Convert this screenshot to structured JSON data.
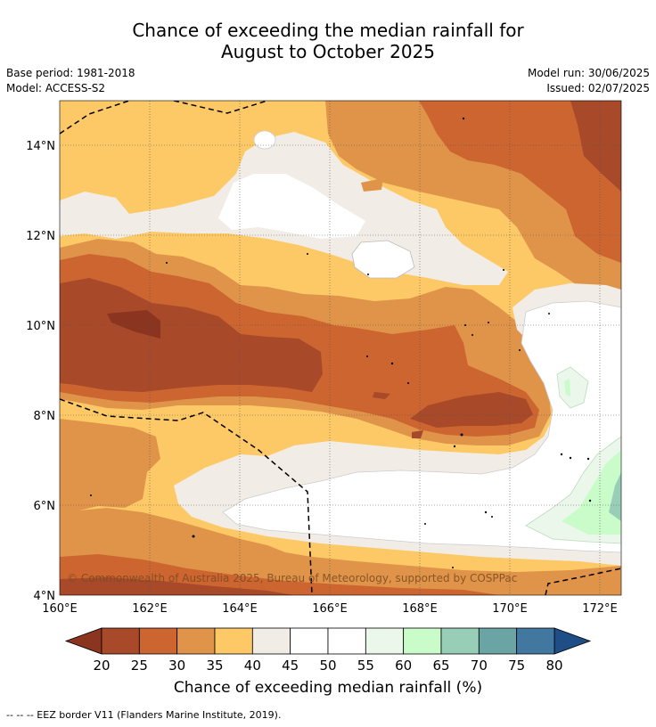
{
  "title_line1": "Chance of exceeding the median rainfall for",
  "title_line2": "August to October 2025",
  "base_period": "Base period: 1981-2018",
  "model": "Model: ACCESS-S2",
  "model_run": "Model run: 30/06/2025",
  "issued": "Issued: 02/07/2025",
  "map": {
    "lon_ticks": [
      "160°E",
      "162°E",
      "164°E",
      "166°E",
      "168°E",
      "170°E",
      "172°E"
    ],
    "lat_ticks": [
      "14°N",
      "12°N",
      "10°N",
      "8°N",
      "6°N",
      "4°N"
    ],
    "lon_range": [
      160,
      172.5
    ],
    "lat_range": [
      4,
      15
    ],
    "copyright": "© Commonwealth of Australia 2025, Bureau of Meteorology, supported by COSPPac"
  },
  "colorbar": {
    "ticks": [
      "20",
      "25",
      "30",
      "35",
      "40",
      "45",
      "50",
      "55",
      "60",
      "65",
      "70",
      "75",
      "80"
    ],
    "colors": [
      "#a8492a",
      "#cc6530",
      "#e0944a",
      "#fdc966",
      "#f1ede6",
      "#ffffff",
      "#ffffff",
      "#eaf7ea",
      "#c9fcc9",
      "#98ceb7",
      "#6ba4a5",
      "#4278a0"
    ],
    "under_color": "#8b3520",
    "over_color": "#1f4e87",
    "label": "Chance of exceeding median rainfall (%)"
  },
  "footnote": "--  --  -- EEZ border V11 (Flanders Marine Institute, 2019)."
}
